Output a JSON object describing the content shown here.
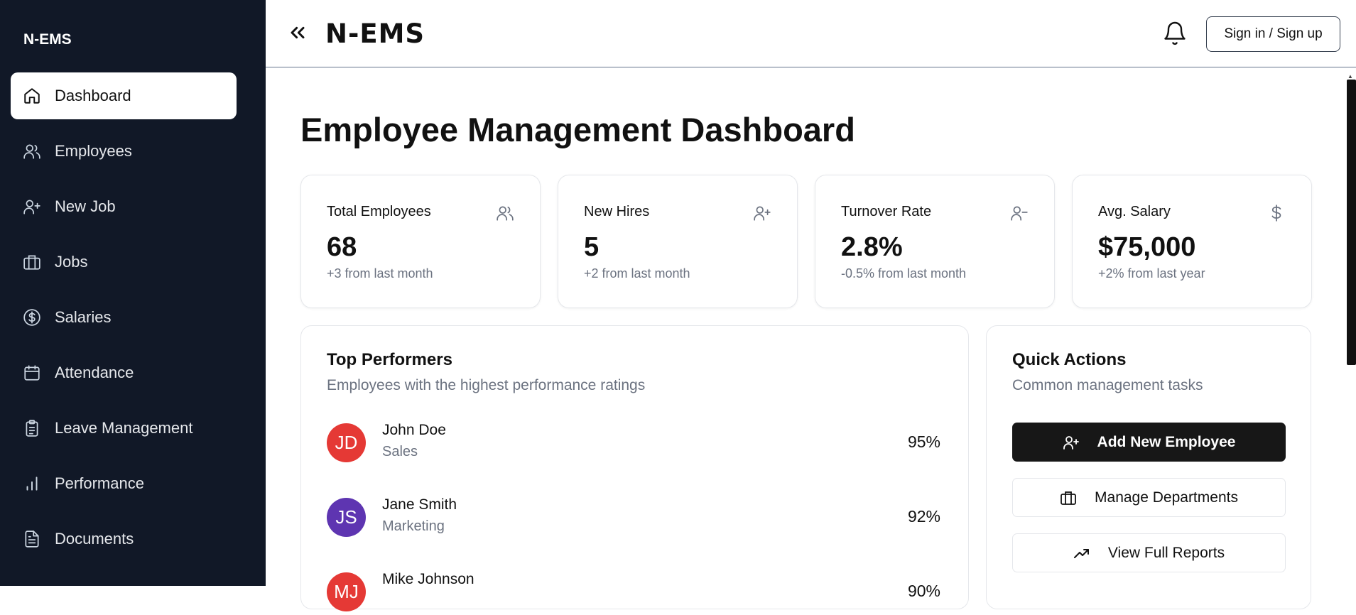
{
  "sidebar": {
    "brand": "N-EMS",
    "items": [
      {
        "label": "Dashboard",
        "icon": "home-icon",
        "active": true
      },
      {
        "label": "Employees",
        "icon": "users-icon"
      },
      {
        "label": "New Job",
        "icon": "user-plus-icon"
      },
      {
        "label": "Jobs",
        "icon": "briefcase-icon"
      },
      {
        "label": "Salaries",
        "icon": "dollar-circle-icon"
      },
      {
        "label": "Attendance",
        "icon": "calendar-icon"
      },
      {
        "label": "Leave Management",
        "icon": "clipboard-icon"
      },
      {
        "label": "Performance",
        "icon": "bar-chart-icon"
      },
      {
        "label": "Documents",
        "icon": "file-text-icon"
      }
    ]
  },
  "header": {
    "logo": "N-EMS",
    "signin_label": "Sign in / Sign up"
  },
  "main": {
    "title": "Employee Management Dashboard",
    "stats": [
      {
        "label": "Total Employees",
        "value": "68",
        "sub": "+3 from last month",
        "icon": "users-icon"
      },
      {
        "label": "New Hires",
        "value": "5",
        "sub": "+2 from last month",
        "icon": "user-plus-icon"
      },
      {
        "label": "Turnover Rate",
        "value": "2.8%",
        "sub": "-0.5% from last month",
        "icon": "user-minus-icon"
      },
      {
        "label": "Avg. Salary",
        "value": "$75,000",
        "sub": "+2% from last year",
        "icon": "dollar-icon"
      }
    ],
    "top_performers": {
      "title": "Top Performers",
      "subtitle": "Employees with the highest performance ratings",
      "items": [
        {
          "initials": "JD",
          "name": "John Doe",
          "dept": "Sales",
          "score": "95%",
          "color": "#e53935"
        },
        {
          "initials": "JS",
          "name": "Jane Smith",
          "dept": "Marketing",
          "score": "92%",
          "color": "#5e35b1"
        },
        {
          "initials": "MJ",
          "name": "Mike Johnson",
          "dept": "",
          "score": "90%",
          "color": "#e53935"
        }
      ]
    },
    "quick_actions": {
      "title": "Quick Actions",
      "subtitle": "Common management tasks",
      "buttons": [
        {
          "label": "Add New Employee",
          "icon": "user-plus-icon"
        },
        {
          "label": "Manage Departments",
          "icon": "briefcase-icon"
        },
        {
          "label": "View Full Reports",
          "icon": "trending-up-icon"
        }
      ]
    }
  }
}
